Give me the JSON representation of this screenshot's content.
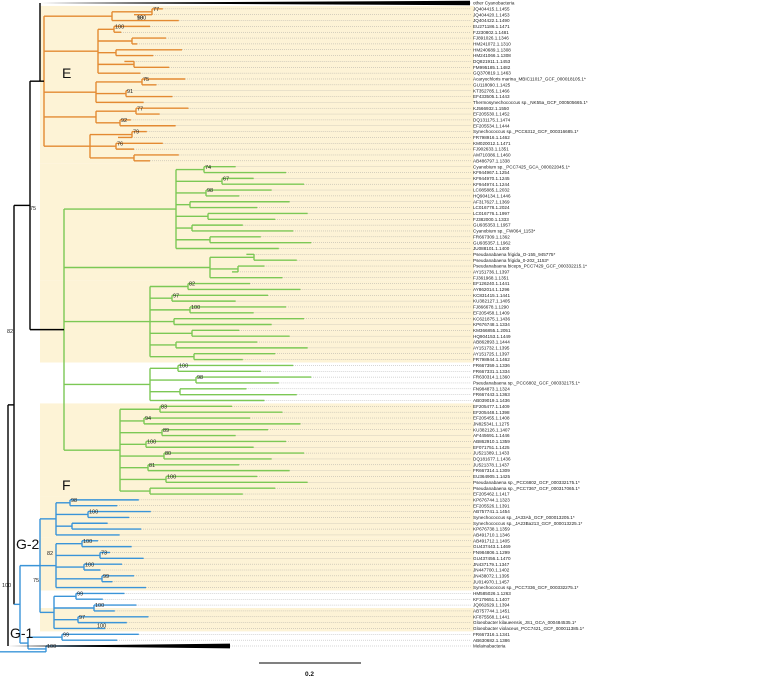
{
  "colors": {
    "highlight": "#fdf3d6",
    "clade_E": "#e38a32",
    "clade_F": "#7cc855",
    "clade_G": "#3a94d8",
    "backbone": "#000000",
    "guide": "#9a9a9a"
  },
  "clade_labels": {
    "E": "E",
    "F": "F",
    "G2": "G-2",
    "G1": "G-1"
  },
  "backbone_supports": {
    "b75": "75",
    "b82": "82",
    "b100": "100",
    "g82": "82",
    "g75": "75"
  },
  "scale_bar": {
    "label": "0.2"
  },
  "tips": [
    "other Cyanobacteria",
    "JQ404415.1.1455",
    "JQ404420.1.1453",
    "JQ404422.1.1490",
    "EU271186.1.1471",
    "FJ230802.1.1481",
    "FJ891026.1.1346",
    "HM241072.1.1310",
    "HM240689.1.1308",
    "HM241066.1.1308",
    "DQ821911.1.1453",
    "FM995185.1.1482",
    "GQ370819.1.1463",
    "Acaryochloris marina_MBIC11017_GCF_000018105.1*",
    "GU118090.1.1425",
    "KT352785.1.1466",
    "EF433505.1.1443",
    "Thermosynechococcus sp._NK55a_GCF_000505665.1*",
    "KJ566932.1.1550",
    "EF205530.1.1452",
    "DQ131175.1.1474",
    "EF205534.1.1444",
    "Synechococcus sp._PCC6312_GCF_000316685.1*",
    "FR798916.1.1462",
    "KM020012.1.1471",
    "FJ902633.1.1351",
    "AM710386.1.1460",
    "AB486797.1.1338",
    "Cyanobium sp._PCC7425_GCA_000022045.1*",
    "KF944967.1.1254",
    "KF944970.1.1245",
    "KF944974.1.1244",
    "LC085885.1.2032",
    "HQ904134.1.1446",
    "AF317627.1.1369",
    "LC016778.1.2024",
    "LC016776.1.1997",
    "FJ382000.1.1333",
    "GU935353.1.1957",
    "Cyanobium sp._FW064_1153*",
    "FR667309.1.1362",
    "GU935357.1.1962",
    "JU088101.1.1400",
    "Pseudanabaena frigida_O-155_945775*",
    "Pseudanabaena frigida_0-202_1153*",
    "Pseudanabaena biceps_PCC7429_GCF_000332215.1*",
    "AY151736.1.1397",
    "FJ361968.1.1351",
    "EF126240.1.1441",
    "AY862014.1.1296",
    "KC831415.1.1441",
    "KU382127.1.1405",
    "FJ866678.1.1290",
    "EF205458.1.1409",
    "KC621875.1.1436",
    "KP676748.1.1334",
    "KM366855.1.2051",
    "HQ904153.1.1449",
    "AB862893.1.1444",
    "AY151732.1.1395",
    "AY151725.1.1397",
    "FR798944.1.1462",
    "FR667359.1.1336",
    "FR667331.1.1334",
    "FR630314.1.1360",
    "Pseudanabaena sp._PCC6802_GCF_000332175.1*",
    "FN984873.1.1324",
    "FR667443.1.1363",
    "AB039019.1.1436",
    "EF205477.1.1409",
    "EF205448.1.1398",
    "EF205455.1.1408",
    "JN825341.1.1275",
    "KU382126.1.1407",
    "AF445691.1.1446",
    "AB862910.1.1359",
    "EF071751.1.1425",
    "JU521389.1.1433",
    "DQ181677.1.1436",
    "JU521378.1.1437",
    "FR667314.1.1309",
    "EU364905.1.1425",
    "Pseudanabaena sp._PCC6802_GCF_000332175.1*",
    "Pseudanabaena sp._PCC7367_GCF_000317065.1*",
    "EF205462.1.1417",
    "KP676744.1.1323",
    "EF205526.1.1391",
    "AB757741.1.1454",
    "Synechococcus sp._JA33Ab_GCF_000013205.1*",
    "Synechococcus sp._JA23Ba213_GCF_000013225.1*",
    "KP676738.1.1359",
    "AB491710.1.1346",
    "AB491712.1.1405",
    "GU437443.1.1469",
    "FN984806.1.1299",
    "GU437456.1.1470",
    "JN437179.1.1347",
    "JN447700.1.1402",
    "JN438072.1.1395",
    "JU014970.1.1457",
    "Synechococcus sp._PCC7336_GCF_000332275.1*",
    "HM585026.1.1263",
    "KF179651.1.1407",
    "JQ062629.1.1394",
    "AB757744.1.1451",
    "KF875568.1.1441",
    "Gloeobacter kilaueensis_JS1_GCA_000484535.1*",
    "Gloeobacter violaceus_PCC7421_GCF_000011385.1*",
    "FR667316.1.1341",
    "AB630682.1.1386",
    "Melainabacteria"
  ],
  "tree": {
    "layout_note": "",
    "clades": [
      {
        "id": "E",
        "color_key": "clade_E",
        "groups": [
          {
            "tips": [
              1,
              2,
              3
            ],
            "depth": 2,
            "support": "77",
            "support2": "98",
            "support3": "100"
          },
          {
            "tips": [
              4,
              5,
              6,
              7,
              8,
              9,
              10,
              11,
              12
            ],
            "depth": 1,
            "support": "100"
          },
          {
            "tips": [
              13,
              14,
              15,
              16,
              17
            ],
            "depth": 1,
            "support": "75",
            "support2": "91"
          },
          {
            "tips": [
              18,
              19,
              20,
              21
            ],
            "depth": 1,
            "support": "77",
            "support2": "92"
          },
          {
            "tips": [
              22,
              23,
              24,
              25,
              26,
              27
            ],
            "depth": 1,
            "support": "79",
            "support2": "76"
          }
        ]
      },
      {
        "id": "F",
        "color_key": "clade_F",
        "groups": [
          {
            "tips": [
              28,
              29,
              30,
              31,
              32,
              33,
              34,
              35,
              36,
              37,
              38,
              39,
              40,
              41,
              42
            ],
            "depth": 1,
            "support": "74",
            "support2": "67",
            "support3": "98"
          },
          {
            "tips": [
              43,
              44,
              45,
              46,
              47
            ],
            "depth": 1,
            "support": ""
          },
          {
            "tips": [
              48,
              49,
              50,
              51,
              52,
              53,
              54,
              55,
              56,
              57,
              58,
              59,
              60,
              61
            ],
            "depth": 1,
            "support": "82",
            "support2": "97",
            "support3": "100"
          },
          {
            "tips": [
              62,
              63,
              64,
              65,
              66,
              67,
              68
            ],
            "depth": 1,
            "support": "100",
            "support2": "98"
          },
          {
            "tips": [
              69,
              70,
              71,
              72,
              73,
              74,
              75,
              76,
              77,
              78,
              79,
              80,
              81,
              82,
              83,
              84
            ],
            "depth": 1,
            "support": "83",
            "support2": "94",
            "support3": "89",
            "support4": "100",
            "support5": "80",
            "support6": "81",
            "support7": "100"
          }
        ]
      },
      {
        "id": "G2",
        "color_key": "clade_G",
        "groups": [
          {
            "tips": [
              85,
              86,
              87,
              88,
              89,
              90,
              91
            ],
            "depth": 1,
            "support": "98",
            "support2": "100"
          },
          {
            "tips": [
              92,
              93,
              94,
              95,
              96,
              97,
              98,
              99,
              100
            ],
            "depth": 1,
            "support": "100",
            "support2": "73",
            "support3": "100",
            "support4": "99"
          },
          {
            "tips": [
              101,
              102,
              103,
              104,
              105,
              106,
              107
            ],
            "depth": 1,
            "support": "99",
            "support2": "100",
            "support3": "97",
            "support4": "100"
          }
        ]
      },
      {
        "id": "G1",
        "color_key": "clade_G",
        "groups": [
          {
            "tips": [
              108,
              109,
              110,
              111
            ],
            "depth": 1,
            "support": "99",
            "support2": "100"
          }
        ]
      }
    ]
  }
}
